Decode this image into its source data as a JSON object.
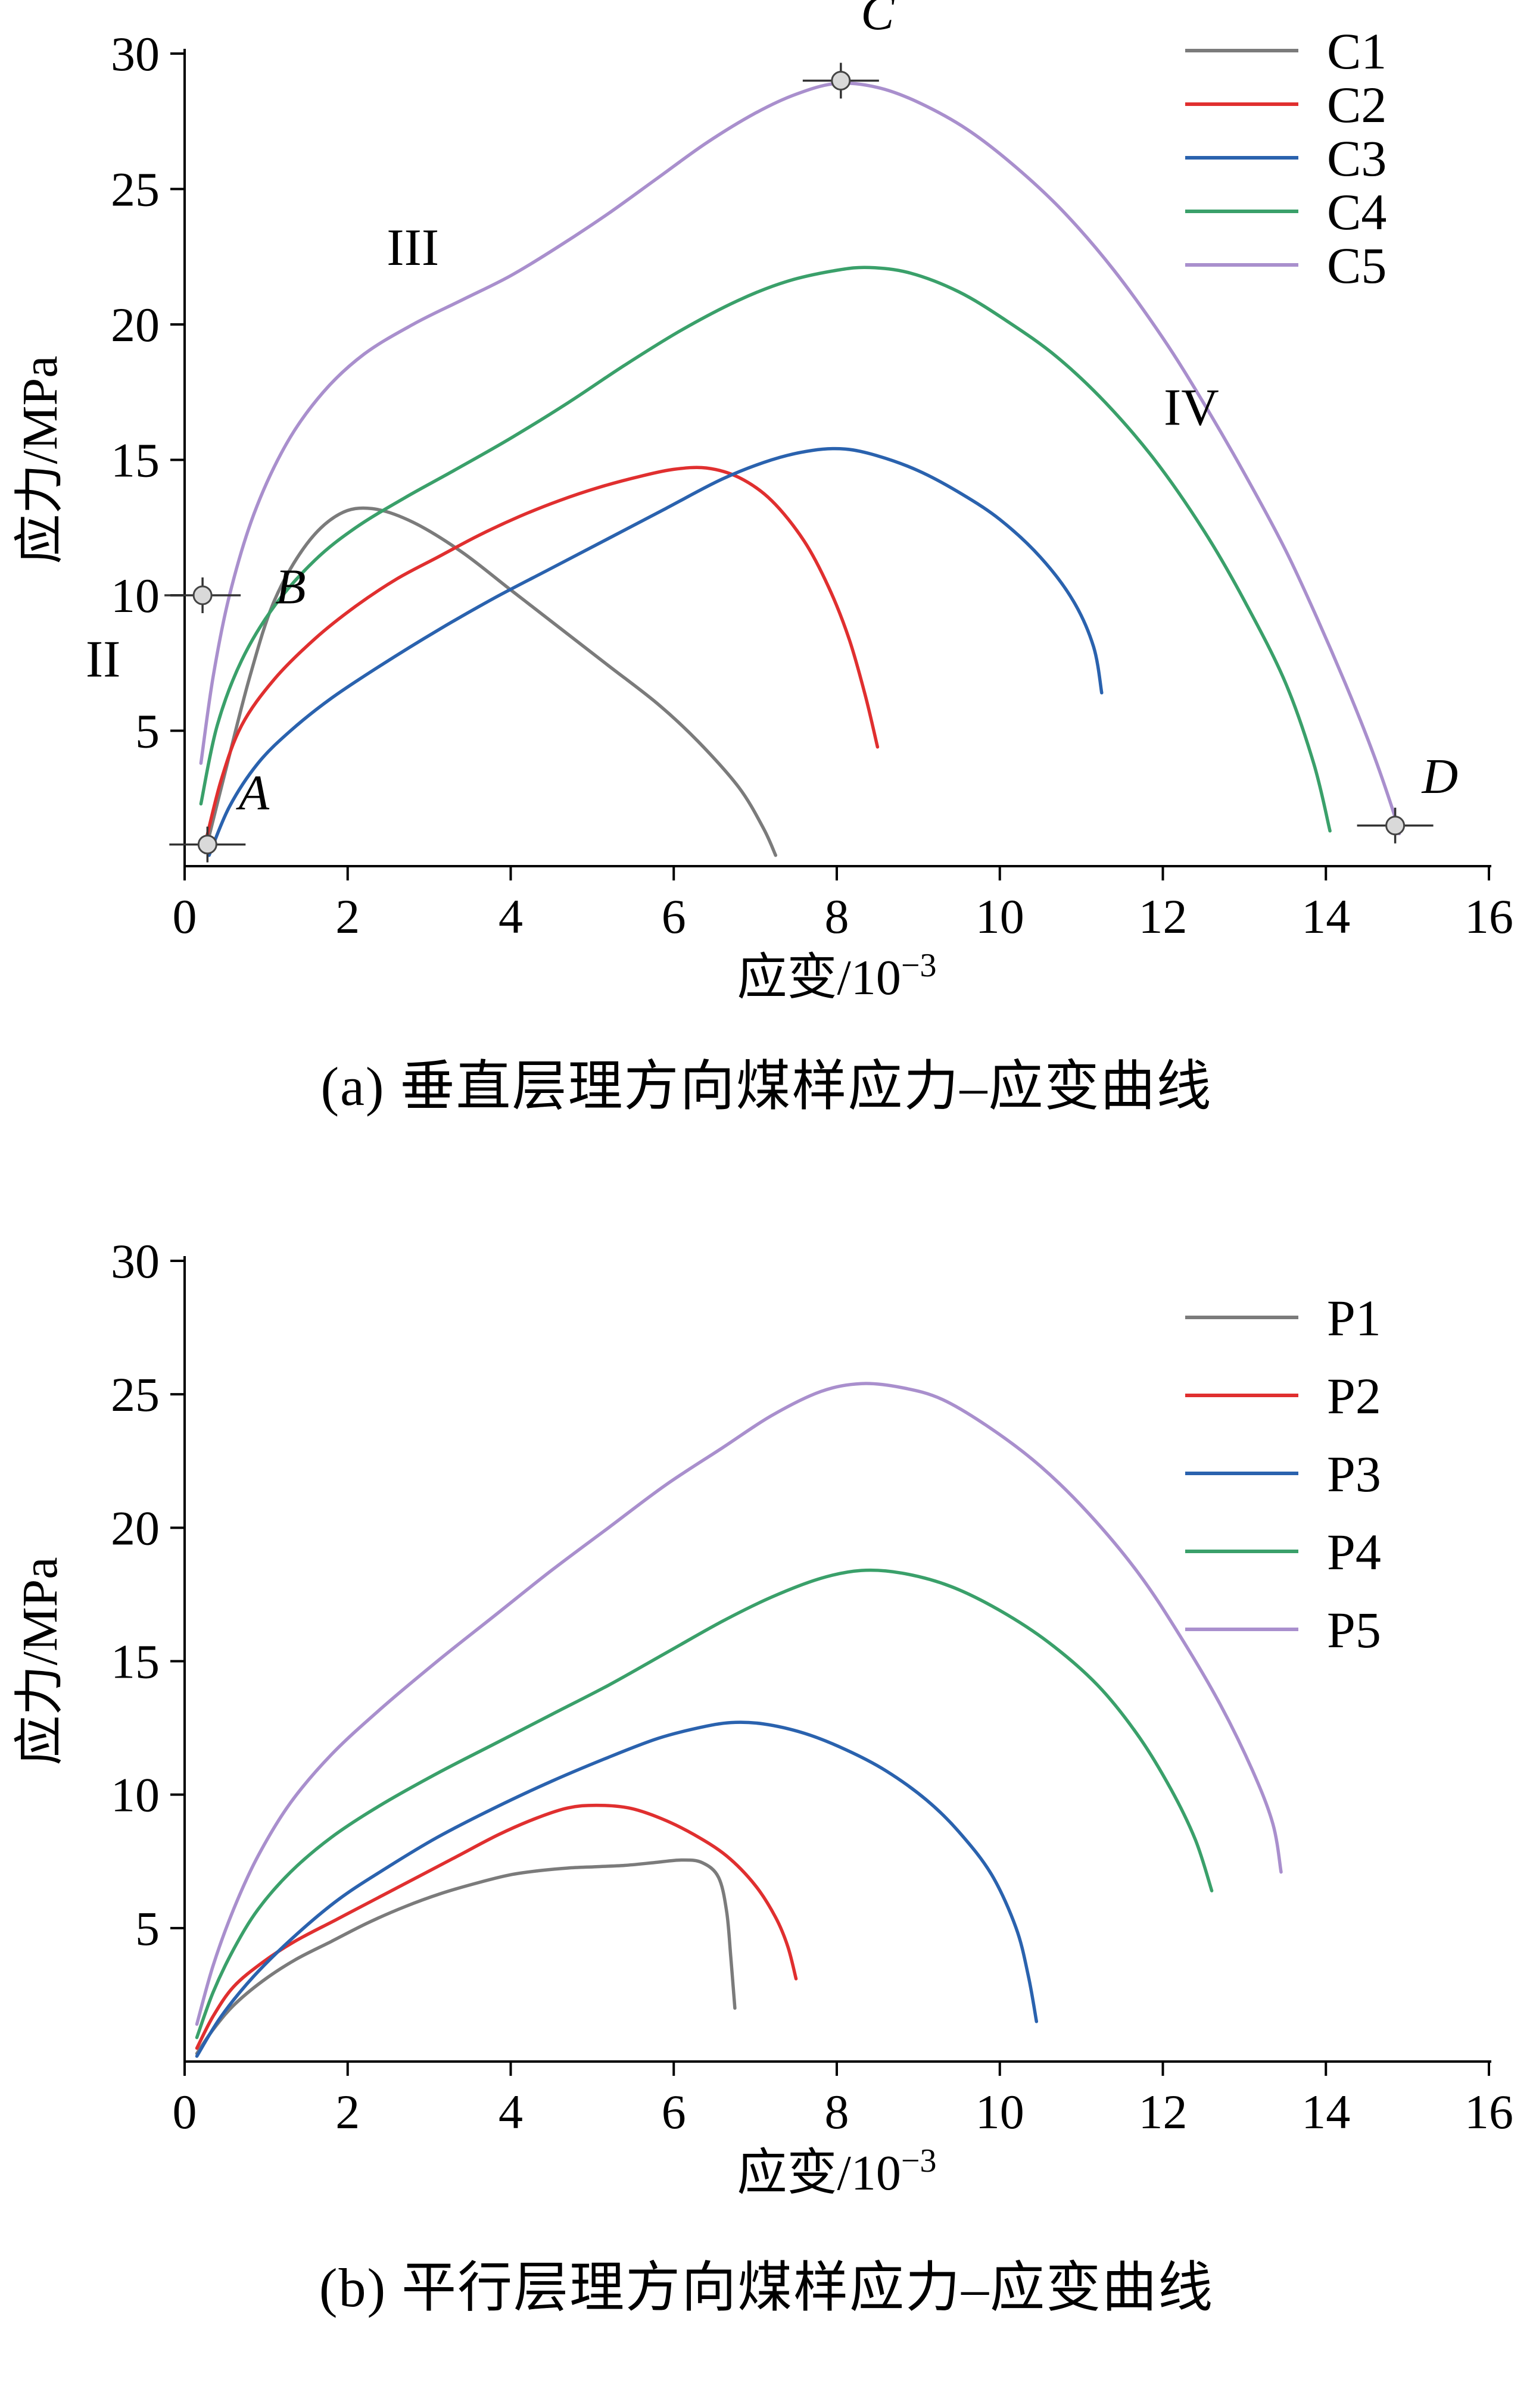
{
  "chart_data": [
    {
      "type": "line",
      "caption": "(a)  垂直层理方向煤样应力–应变曲线",
      "xlabel_base": "应变/10",
      "xlabel_sup": "−3",
      "ylabel": "应力/MPa",
      "xlim": [
        0,
        16
      ],
      "ylim": [
        0,
        30
      ],
      "xticks": [
        0,
        2,
        4,
        6,
        8,
        10,
        12,
        14,
        16
      ],
      "yticks": [
        5,
        10,
        15,
        20,
        25,
        30
      ],
      "legend_position": "top-right",
      "grid": false,
      "series": [
        {
          "name": "C1",
          "color": "#7b7b7b",
          "points": [
            [
              0.25,
              0.5
            ],
            [
              0.5,
              3.5
            ],
            [
              0.8,
              7
            ],
            [
              1.1,
              9.8
            ],
            [
              1.5,
              11.9
            ],
            [
              1.9,
              13
            ],
            [
              2.3,
              13.2
            ],
            [
              2.8,
              12.7
            ],
            [
              3.4,
              11.6
            ],
            [
              4,
              10.2
            ],
            [
              4.6,
              8.8
            ],
            [
              5.2,
              7.4
            ],
            [
              5.8,
              6
            ],
            [
              6.3,
              4.6
            ],
            [
              6.8,
              2.9
            ],
            [
              7.1,
              1.4
            ],
            [
              7.25,
              0.4
            ]
          ]
        },
        {
          "name": "C2",
          "color": "#e02f2f",
          "points": [
            [
              0.25,
              0.8
            ],
            [
              0.45,
              3.2
            ],
            [
              0.7,
              5.2
            ],
            [
              1.1,
              6.9
            ],
            [
              1.6,
              8.4
            ],
            [
              2.1,
              9.6
            ],
            [
              2.6,
              10.6
            ],
            [
              3.1,
              11.4
            ],
            [
              3.6,
              12.2
            ],
            [
              4.1,
              12.9
            ],
            [
              4.6,
              13.5
            ],
            [
              5.1,
              14
            ],
            [
              5.6,
              14.4
            ],
            [
              6,
              14.65
            ],
            [
              6.4,
              14.7
            ],
            [
              6.8,
              14.35
            ],
            [
              7.2,
              13.5
            ],
            [
              7.6,
              12
            ],
            [
              7.9,
              10.3
            ],
            [
              8.15,
              8.4
            ],
            [
              8.35,
              6.3
            ],
            [
              8.5,
              4.4
            ]
          ]
        },
        {
          "name": "C3",
          "color": "#2a62ae",
          "points": [
            [
              0.3,
              0.4
            ],
            [
              0.55,
              2.2
            ],
            [
              0.9,
              3.8
            ],
            [
              1.3,
              5
            ],
            [
              1.8,
              6.2
            ],
            [
              2.4,
              7.4
            ],
            [
              3.1,
              8.7
            ],
            [
              3.8,
              9.9
            ],
            [
              4.5,
              11
            ],
            [
              5.2,
              12.1
            ],
            [
              5.9,
              13.2
            ],
            [
              6.6,
              14.3
            ],
            [
              7.2,
              15
            ],
            [
              7.7,
              15.35
            ],
            [
              8.1,
              15.4
            ],
            [
              8.5,
              15.15
            ],
            [
              9,
              14.6
            ],
            [
              9.5,
              13.8
            ],
            [
              10,
              12.8
            ],
            [
              10.5,
              11.4
            ],
            [
              10.9,
              9.8
            ],
            [
              11.15,
              8.1
            ],
            [
              11.25,
              6.4
            ]
          ]
        },
        {
          "name": "C4",
          "color": "#3aa06a",
          "points": [
            [
              0.2,
              2.3
            ],
            [
              0.4,
              5.2
            ],
            [
              0.7,
              7.6
            ],
            [
              1.1,
              9.6
            ],
            [
              1.6,
              11.3
            ],
            [
              2.1,
              12.5
            ],
            [
              2.7,
              13.6
            ],
            [
              3.3,
              14.6
            ],
            [
              4,
              15.8
            ],
            [
              4.7,
              17.1
            ],
            [
              5.4,
              18.5
            ],
            [
              6.1,
              19.8
            ],
            [
              6.8,
              20.9
            ],
            [
              7.4,
              21.6
            ],
            [
              8,
              22
            ],
            [
              8.4,
              22.1
            ],
            [
              8.9,
              21.9
            ],
            [
              9.5,
              21.2
            ],
            [
              10.1,
              20.1
            ],
            [
              10.7,
              18.8
            ],
            [
              11.3,
              17.1
            ],
            [
              11.9,
              15
            ],
            [
              12.5,
              12.4
            ],
            [
              13,
              9.8
            ],
            [
              13.5,
              6.8
            ],
            [
              13.85,
              3.8
            ],
            [
              14.05,
              1.3
            ]
          ]
        },
        {
          "name": "C5",
          "color": "#a98fcd",
          "points": [
            [
              0.2,
              3.8
            ],
            [
              0.35,
              7
            ],
            [
              0.55,
              10
            ],
            [
              0.85,
              13
            ],
            [
              1.25,
              15.6
            ],
            [
              1.7,
              17.5
            ],
            [
              2.2,
              18.9
            ],
            [
              2.8,
              20
            ],
            [
              3.4,
              20.9
            ],
            [
              4,
              21.8
            ],
            [
              4.6,
              22.9
            ],
            [
              5.2,
              24.1
            ],
            [
              5.8,
              25.4
            ],
            [
              6.4,
              26.7
            ],
            [
              7,
              27.8
            ],
            [
              7.5,
              28.5
            ],
            [
              8,
              28.9
            ],
            [
              8.5,
              28.75
            ],
            [
              9,
              28.2
            ],
            [
              9.6,
              27.2
            ],
            [
              10.2,
              25.8
            ],
            [
              10.8,
              24.1
            ],
            [
              11.4,
              22
            ],
            [
              12,
              19.5
            ],
            [
              12.5,
              17.1
            ],
            [
              13,
              14.5
            ],
            [
              13.5,
              11.7
            ],
            [
              13.9,
              9.1
            ],
            [
              14.3,
              6.3
            ],
            [
              14.6,
              4
            ],
            [
              14.85,
              1.8
            ],
            [
              14.9,
              1.2
            ]
          ]
        }
      ],
      "stage_annotations": [
        {
          "text": "II",
          "x": -1.0,
          "y": 7.0
        },
        {
          "text": "III",
          "x": 2.8,
          "y": 22.2
        },
        {
          "text": "IV",
          "x": 12.35,
          "y": 16.3
        }
      ],
      "point_markers": [
        {
          "label": "A",
          "x": 0.28,
          "y": 0.8,
          "label_x": 0.85,
          "label_y": 2.1
        },
        {
          "label": "B",
          "x": 0.22,
          "y": 10.0,
          "label_x": 1.3,
          "label_y": 9.7
        },
        {
          "label": "C",
          "x": 8.05,
          "y": 29.0,
          "label_x": 8.5,
          "label_y": 30.9
        },
        {
          "label": "D",
          "x": 14.85,
          "y": 1.5,
          "label_x": 15.4,
          "label_y": 2.7
        }
      ]
    },
    {
      "type": "line",
      "caption": "(b)  平行层理方向煤样应力–应变曲线",
      "xlabel_base": "应变/10",
      "xlabel_sup": "−3",
      "ylabel": "应力/MPa",
      "xlim": [
        0,
        16
      ],
      "ylim": [
        0,
        30
      ],
      "xticks": [
        0,
        2,
        4,
        6,
        8,
        10,
        12,
        14,
        16
      ],
      "yticks": [
        5,
        10,
        15,
        20,
        25,
        30
      ],
      "legend_position": "top-right",
      "grid": false,
      "series": [
        {
          "name": "P1",
          "color": "#7b7b7b",
          "points": [
            [
              0.15,
              0.3
            ],
            [
              0.35,
              1.2
            ],
            [
              0.6,
              2.1
            ],
            [
              0.95,
              3
            ],
            [
              1.35,
              3.8
            ],
            [
              1.8,
              4.5
            ],
            [
              2.25,
              5.2
            ],
            [
              2.7,
              5.8
            ],
            [
              3.15,
              6.3
            ],
            [
              3.6,
              6.7
            ],
            [
              4,
              7
            ],
            [
              4.35,
              7.15
            ],
            [
              4.7,
              7.25
            ],
            [
              5.05,
              7.3
            ],
            [
              5.4,
              7.35
            ],
            [
              5.75,
              7.45
            ],
            [
              6.1,
              7.55
            ],
            [
              6.35,
              7.45
            ],
            [
              6.55,
              6.9
            ],
            [
              6.65,
              5.6
            ],
            [
              6.7,
              3.9
            ],
            [
              6.75,
              2
            ]
          ]
        },
        {
          "name": "P2",
          "color": "#e02f2f",
          "points": [
            [
              0.15,
              0.5
            ],
            [
              0.35,
              1.7
            ],
            [
              0.6,
              2.8
            ],
            [
              0.95,
              3.7
            ],
            [
              1.35,
              4.5
            ],
            [
              1.85,
              5.3
            ],
            [
              2.35,
              6.1
            ],
            [
              2.85,
              6.9
            ],
            [
              3.35,
              7.7
            ],
            [
              3.85,
              8.5
            ],
            [
              4.3,
              9.1
            ],
            [
              4.7,
              9.5
            ],
            [
              5.05,
              9.6
            ],
            [
              5.45,
              9.5
            ],
            [
              5.85,
              9.1
            ],
            [
              6.25,
              8.5
            ],
            [
              6.65,
              7.7
            ],
            [
              7,
              6.6
            ],
            [
              7.25,
              5.4
            ],
            [
              7.4,
              4.3
            ],
            [
              7.5,
              3.1
            ]
          ]
        },
        {
          "name": "P3",
          "color": "#2a62ae",
          "points": [
            [
              0.15,
              0.2
            ],
            [
              0.45,
              1.7
            ],
            [
              0.85,
              3.2
            ],
            [
              1.35,
              4.7
            ],
            [
              1.9,
              6.1
            ],
            [
              2.5,
              7.3
            ],
            [
              3.1,
              8.4
            ],
            [
              3.8,
              9.5
            ],
            [
              4.5,
              10.5
            ],
            [
              5.2,
              11.4
            ],
            [
              5.8,
              12.1
            ],
            [
              6.3,
              12.5
            ],
            [
              6.7,
              12.7
            ],
            [
              7.1,
              12.65
            ],
            [
              7.6,
              12.3
            ],
            [
              8.1,
              11.7
            ],
            [
              8.6,
              10.9
            ],
            [
              9.1,
              9.8
            ],
            [
              9.5,
              8.6
            ],
            [
              9.9,
              7
            ],
            [
              10.2,
              5
            ],
            [
              10.35,
              3.2
            ],
            [
              10.45,
              1.5
            ]
          ]
        },
        {
          "name": "P4",
          "color": "#3aa06a",
          "points": [
            [
              0.15,
              0.9
            ],
            [
              0.35,
              2.6
            ],
            [
              0.6,
              4.2
            ],
            [
              0.9,
              5.7
            ],
            [
              1.3,
              7.1
            ],
            [
              1.8,
              8.4
            ],
            [
              2.4,
              9.6
            ],
            [
              3.1,
              10.8
            ],
            [
              3.8,
              11.9
            ],
            [
              4.5,
              13
            ],
            [
              5.2,
              14.1
            ],
            [
              5.9,
              15.3
            ],
            [
              6.6,
              16.5
            ],
            [
              7.2,
              17.4
            ],
            [
              7.8,
              18.1
            ],
            [
              8.3,
              18.4
            ],
            [
              8.8,
              18.3
            ],
            [
              9.4,
              17.8
            ],
            [
              10,
              16.9
            ],
            [
              10.6,
              15.7
            ],
            [
              11.2,
              14.1
            ],
            [
              11.7,
              12.2
            ],
            [
              12.1,
              10.2
            ],
            [
              12.4,
              8.3
            ],
            [
              12.6,
              6.4
            ]
          ]
        },
        {
          "name": "P5",
          "color": "#a98fcd",
          "points": [
            [
              0.15,
              1.4
            ],
            [
              0.35,
              3.6
            ],
            [
              0.6,
              5.7
            ],
            [
              0.9,
              7.7
            ],
            [
              1.3,
              9.7
            ],
            [
              1.8,
              11.5
            ],
            [
              2.4,
              13.2
            ],
            [
              3.1,
              15
            ],
            [
              3.8,
              16.7
            ],
            [
              4.5,
              18.4
            ],
            [
              5.2,
              20
            ],
            [
              5.9,
              21.6
            ],
            [
              6.6,
              23
            ],
            [
              7.2,
              24.2
            ],
            [
              7.8,
              25.1
            ],
            [
              8.3,
              25.4
            ],
            [
              8.8,
              25.25
            ],
            [
              9.3,
              24.8
            ],
            [
              9.9,
              23.7
            ],
            [
              10.5,
              22.3
            ],
            [
              11.1,
              20.5
            ],
            [
              11.7,
              18.3
            ],
            [
              12.2,
              16
            ],
            [
              12.7,
              13.4
            ],
            [
              13.1,
              10.9
            ],
            [
              13.35,
              8.9
            ],
            [
              13.45,
              7.1
            ]
          ]
        }
      ],
      "stage_annotations": [],
      "point_markers": []
    }
  ]
}
